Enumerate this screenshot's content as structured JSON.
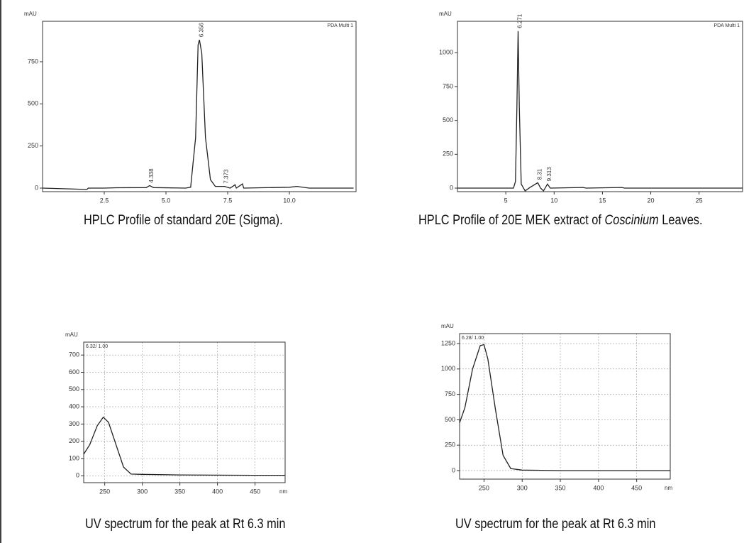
{
  "chart_data": [
    {
      "type": "line",
      "y_unit": "mAU",
      "legend_text": "PDA Multi 1",
      "caption": [
        "HPLC Profile of standard 20E (Sigma)."
      ],
      "x": [
        0,
        1.8,
        1.85,
        2.5,
        3,
        4.2,
        4.338,
        4.5,
        5.8,
        6.0,
        6.2,
        6.3,
        6.356,
        6.45,
        6.6,
        6.8,
        7.0,
        7.373,
        7.6,
        7.8,
        7.85,
        8.1,
        8.15,
        10.0,
        10.3,
        10.8,
        12.6
      ],
      "y": [
        0,
        -8,
        0,
        0,
        2,
        3,
        15,
        3,
        0,
        5,
        300,
        850,
        880,
        800,
        300,
        50,
        10,
        10,
        0,
        20,
        0,
        25,
        0,
        5,
        10,
        0,
        0
      ],
      "peaks": [
        4.338,
        6.356,
        7.373
      ],
      "color": "#222",
      "grid": false,
      "xlim": [
        0,
        12.7
      ],
      "xticks": [
        2.5,
        {
          "value": 5,
          "label": "5.0"
        },
        7.5,
        {
          "value": 10,
          "label": "10.0"
        }
      ],
      "ylim": [
        -21,
        990
      ],
      "yticks": [
        0,
        250,
        500,
        750
      ]
    },
    {
      "type": "line",
      "y_unit": "mAU",
      "legend_text": "PDA Multi 1",
      "caption": [
        "HPLC Profile of 20E MEK extract of ",
        "Coscinium",
        " Leaves."
      ],
      "x": [
        0,
        5.8,
        6.0,
        6.15,
        6.271,
        6.4,
        6.6,
        7,
        7.5,
        8.31,
        8.6,
        8.9,
        9.313,
        9.6,
        13,
        13.3,
        17,
        17.3,
        29.5
      ],
      "y": [
        0,
        0,
        50,
        600,
        1160,
        600,
        30,
        -20,
        5,
        40,
        0,
        -20,
        30,
        0,
        5,
        0,
        5,
        0,
        0
      ],
      "peaks": [
        6.271,
        8.31,
        9.313
      ],
      "color": "#222",
      "grid": false,
      "xlim": [
        0,
        29.5
      ],
      "xticks": [
        5,
        10,
        15,
        20,
        25
      ],
      "ylim": [
        -26,
        1232
      ],
      "yticks": [
        0,
        250,
        500,
        750,
        1000
      ]
    },
    {
      "type": "line",
      "y_unit": "mAU",
      "x_unit": "nm",
      "legend_text": "6.32/ 1.00",
      "caption": [
        "UV spectrum for the peak at Rt 6.3 min"
      ],
      "x": [
        222,
        230,
        240,
        248,
        255,
        265,
        275,
        285,
        300,
        350,
        450,
        490
      ],
      "y": [
        125,
        180,
        290,
        340,
        310,
        180,
        50,
        10,
        8,
        5,
        3,
        3
      ],
      "color": "#222",
      "grid": true,
      "xlim": [
        222,
        490
      ],
      "xticks": [
        250,
        300,
        350,
        400,
        450
      ],
      "ylim": [
        -40,
        775
      ],
      "yticks": [
        0,
        100,
        200,
        300,
        400,
        500,
        600,
        700
      ]
    },
    {
      "type": "line",
      "y_unit": "mAU",
      "x_unit": "nm",
      "legend_text": "6.28/ 1.00",
      "caption": [
        "UV spectrum for the peak at Rt 6.3 min"
      ],
      "x": [
        218,
        225,
        235,
        245,
        250,
        255,
        265,
        275,
        285,
        300,
        350,
        494
      ],
      "y": [
        470,
        620,
        1000,
        1230,
        1240,
        1100,
        600,
        150,
        20,
        5,
        0,
        0
      ],
      "color": "#222",
      "grid": true,
      "xlim": [
        218,
        494
      ],
      "xticks": [
        250,
        300,
        350,
        400,
        450
      ],
      "ylim": [
        -84,
        1348
      ],
      "yticks": [
        0,
        250,
        500,
        750,
        1000,
        1250
      ]
    }
  ]
}
